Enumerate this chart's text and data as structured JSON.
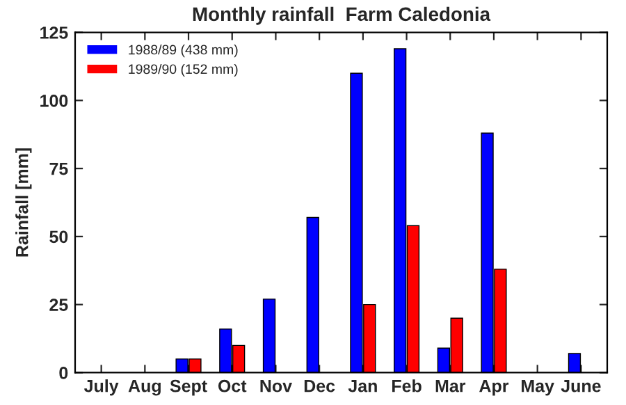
{
  "chart_data": {
    "type": "bar",
    "title": "Monthly rainfall  Farm Caledonia",
    "ylabel": "Rainfall [mm]",
    "categories": [
      "July",
      "Aug",
      "Sept",
      "Oct",
      "Nov",
      "Dec",
      "Jan",
      "Feb",
      "Mar",
      "Apr",
      "May",
      "June"
    ],
    "series": [
      {
        "name": "1988/89 (438 mm)",
        "color": "#0000ff",
        "values": [
          0,
          0,
          5,
          16,
          27,
          57,
          110,
          119,
          9,
          88,
          0,
          7
        ]
      },
      {
        "name": "1989/90 (152 mm)",
        "color": "#ff0000",
        "values": [
          0,
          0,
          5,
          10,
          0,
          0,
          25,
          54,
          20,
          38,
          0,
          0
        ]
      }
    ],
    "ylim": [
      0,
      125
    ],
    "yticks": [
      0,
      25,
      50,
      75,
      100,
      125
    ],
    "grid": false,
    "legend": "top left"
  }
}
